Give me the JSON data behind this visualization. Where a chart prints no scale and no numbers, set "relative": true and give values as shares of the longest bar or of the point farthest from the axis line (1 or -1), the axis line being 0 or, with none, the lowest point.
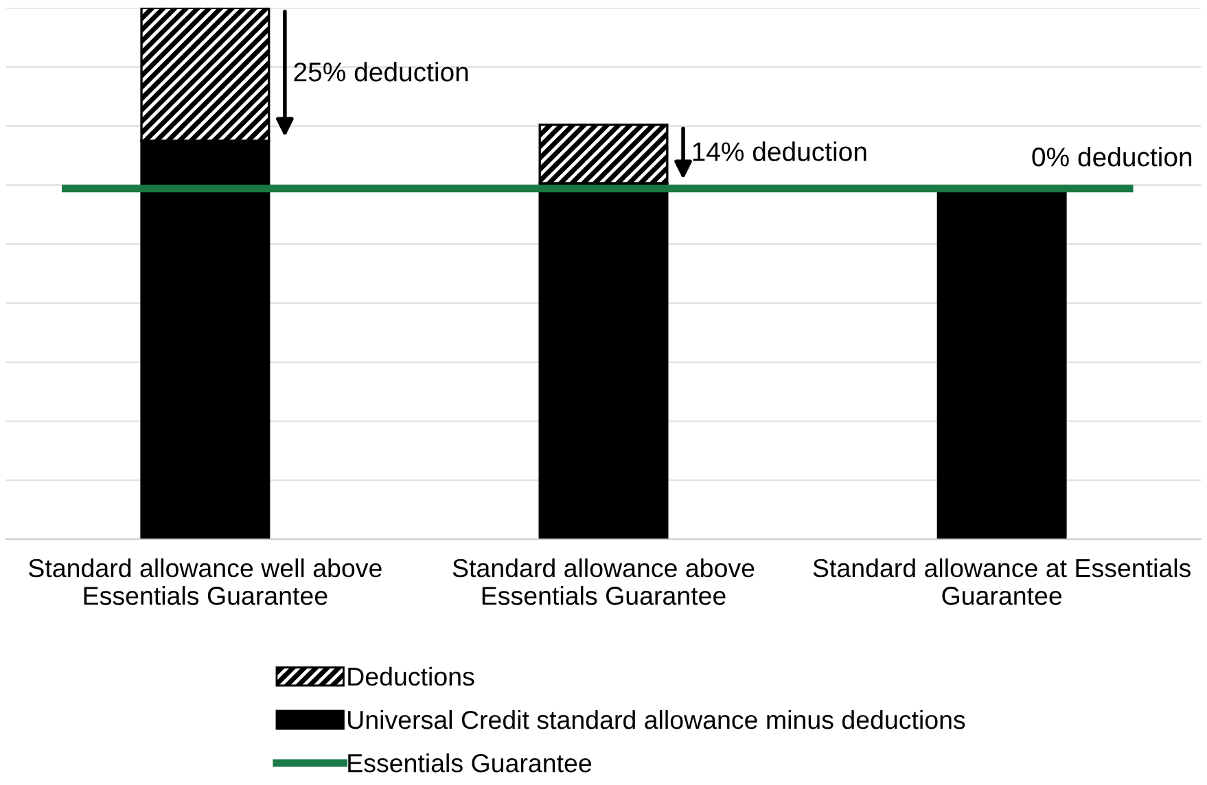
{
  "chart_data": {
    "type": "bar",
    "relative": true,
    "stacked": true,
    "categories": [
      "Standard allowance well above\nEssentials Guarantee",
      "Standard allowance above\nEssentials Guarantee",
      "Standard allowance at Essentials\nGuarantee"
    ],
    "series": [
      {
        "name": "Universal Credit standard allowance minus deductions",
        "color": "#000000",
        "values": [
          0.75,
          0.67,
          0.66
        ]
      },
      {
        "name": "Deductions",
        "color": "#000000",
        "values": [
          0.25,
          0.11,
          0
        ]
      }
    ],
    "ref_lines": [
      {
        "axis": "y",
        "value": 0.66,
        "label": "Essentials Guarantee",
        "color": "#1a7a45",
        "line_style": "solid"
      }
    ],
    "annotations": [
      "25% deduction",
      "14% deduction",
      "0% deduction"
    ],
    "grid": "y",
    "legend": "bottom"
  }
}
